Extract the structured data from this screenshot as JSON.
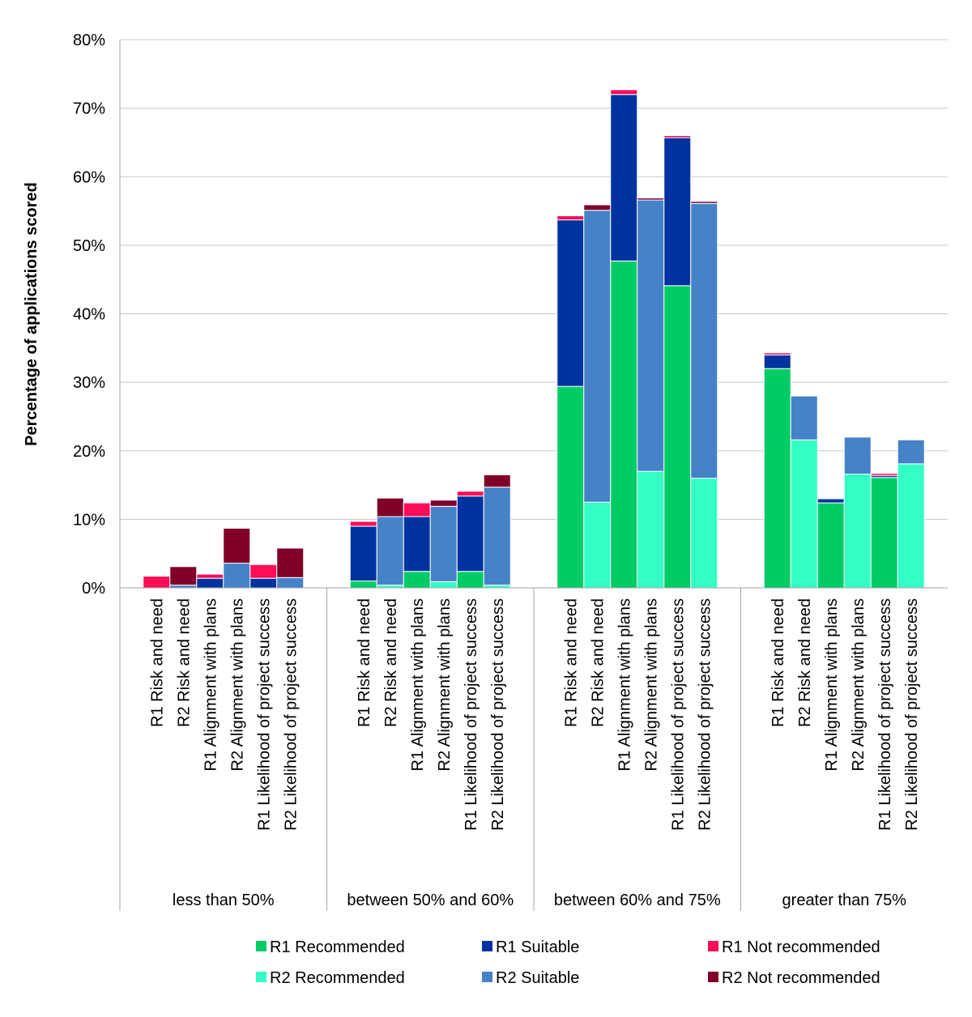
{
  "chart_data": {
    "type": "bar",
    "stacked": true,
    "title": "",
    "ylabel": "Percentage of applications scored",
    "xlabel": "",
    "ylim": [
      0,
      80
    ],
    "yticks": [
      0,
      10,
      20,
      30,
      40,
      50,
      60,
      70,
      80
    ],
    "ytick_labels": [
      "0%",
      "10%",
      "20%",
      "30%",
      "40%",
      "50%",
      "60%",
      "70%",
      "80%"
    ],
    "grid": true,
    "legend_position": "bottom",
    "groups": [
      {
        "label": "less than 50%",
        "bars": [
          {
            "label": "R1 Risk and need",
            "segments": {
              "R1 Recommended": 0,
              "R1 Suitable": 0,
              "R1 Not recommended": 1.7
            }
          },
          {
            "label": "R2 Risk and need",
            "segments": {
              "R2 Recommended": 0,
              "R2 Suitable": 0.4,
              "R2 Not recommended": 2.7
            }
          },
          {
            "label": "R1 Alignment with plans",
            "segments": {
              "R1 Recommended": 0,
              "R1 Suitable": 1.4,
              "R1 Not recommended": 0.6
            }
          },
          {
            "label": "R2 Alignment with plans",
            "segments": {
              "R2 Recommended": 0,
              "R2 Suitable": 3.6,
              "R2 Not recommended": 5.1
            }
          },
          {
            "label": "R1 Likelihood of project success",
            "segments": {
              "R1 Recommended": 0,
              "R1 Suitable": 1.4,
              "R1 Not recommended": 2.0
            }
          },
          {
            "label": "R2 Likelihood of project success",
            "segments": {
              "R2 Recommended": 0,
              "R2 Suitable": 1.5,
              "R2 Not recommended": 4.3
            }
          }
        ]
      },
      {
        "label": "between 50% and 60%",
        "bars": [
          {
            "label": "R1 Risk and need",
            "segments": {
              "R1 Recommended": 1.0,
              "R1 Suitable": 8.0,
              "R1 Not recommended": 0.7
            }
          },
          {
            "label": "R2 Risk and need",
            "segments": {
              "R2 Recommended": 0.4,
              "R2 Suitable": 10.0,
              "R2 Not recommended": 2.7
            }
          },
          {
            "label": "R1 Alignment with plans",
            "segments": {
              "R1 Recommended": 2.4,
              "R1 Suitable": 8.0,
              "R1 Not recommended": 2.0
            }
          },
          {
            "label": "R2 Alignment with plans",
            "segments": {
              "R2 Recommended": 0.9,
              "R2 Suitable": 11.0,
              "R2 Not recommended": 0.9
            }
          },
          {
            "label": "R1 Likelihood of project success",
            "segments": {
              "R1 Recommended": 2.4,
              "R1 Suitable": 11.0,
              "R1 Not recommended": 0.7
            }
          },
          {
            "label": "R2 Likelihood of project success",
            "segments": {
              "R2 Recommended": 0.4,
              "R2 Suitable": 14.3,
              "R2 Not recommended": 1.8
            }
          }
        ]
      },
      {
        "label": "between 60% and 75%",
        "bars": [
          {
            "label": "R1 Risk and need",
            "segments": {
              "R1 Recommended": 29.4,
              "R1 Suitable": 24.3,
              "R1 Not recommended": 0.6
            }
          },
          {
            "label": "R2 Risk and need",
            "segments": {
              "R2 Recommended": 12.5,
              "R2 Suitable": 42.6,
              "R2 Not recommended": 0.8
            }
          },
          {
            "label": "R1 Alignment with plans",
            "segments": {
              "R1 Recommended": 47.7,
              "R1 Suitable": 24.3,
              "R1 Not recommended": 0.7
            }
          },
          {
            "label": "R2 Alignment with plans",
            "segments": {
              "R2 Recommended": 17.0,
              "R2 Suitable": 39.6,
              "R2 Not recommended": 0.3
            }
          },
          {
            "label": "R1 Likelihood of project success",
            "segments": {
              "R1 Recommended": 44.1,
              "R1 Suitable": 21.6,
              "R1 Not recommended": 0.3
            }
          },
          {
            "label": "R2 Likelihood of project success",
            "segments": {
              "R2 Recommended": 16.0,
              "R2 Suitable": 40.1,
              "R2 Not recommended": 0.3
            }
          }
        ]
      },
      {
        "label": "greater than 75%",
        "bars": [
          {
            "label": "R1 Risk and need",
            "segments": {
              "R1 Recommended": 32.0,
              "R1 Suitable": 2.0,
              "R1 Not recommended": 0.3
            }
          },
          {
            "label": "R2 Risk and need",
            "segments": {
              "R2 Recommended": 21.6,
              "R2 Suitable": 6.4,
              "R2 Not recommended": 0
            }
          },
          {
            "label": "R1 Alignment with plans",
            "segments": {
              "R1 Recommended": 12.4,
              "R1 Suitable": 0.6,
              "R1 Not recommended": 0
            }
          },
          {
            "label": "R2 Alignment with plans",
            "segments": {
              "R2 Recommended": 16.6,
              "R2 Suitable": 5.4,
              "R2 Not recommended": 0
            }
          },
          {
            "label": "R1 Likelihood of project success",
            "segments": {
              "R1 Recommended": 16.1,
              "R1 Suitable": 0.3,
              "R1 Not recommended": 0.3
            }
          },
          {
            "label": "R2 Likelihood of project success",
            "segments": {
              "R2 Recommended": 18.1,
              "R2 Suitable": 3.5,
              "R2 Not recommended": 0
            }
          }
        ]
      }
    ],
    "series": [
      {
        "name": "R1 Recommended",
        "color": "#00CC66"
      },
      {
        "name": "R1 Suitable",
        "color": "#0033A0"
      },
      {
        "name": "R1 Not recommended",
        "color": "#FF0D57"
      },
      {
        "name": "R2 Recommended",
        "color": "#33FFC4"
      },
      {
        "name": "R2 Suitable",
        "color": "#4682C8"
      },
      {
        "name": "R2 Not recommended",
        "color": "#800028"
      }
    ]
  }
}
